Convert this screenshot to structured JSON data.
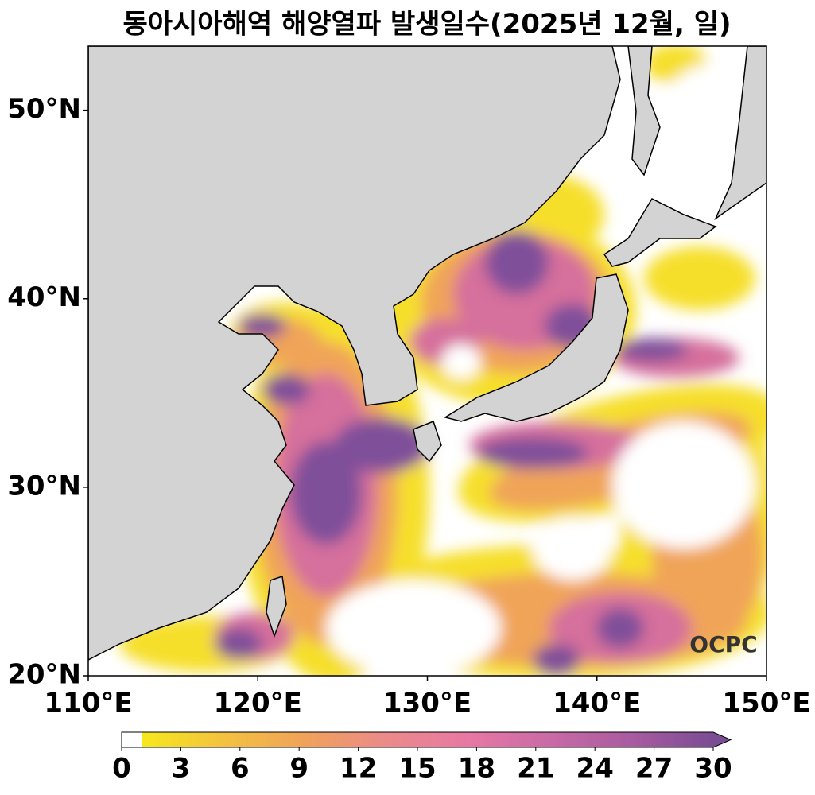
{
  "title": "동아시아해역 해양열파 발생일수(2025년 12월, 일)",
  "map": {
    "lonlim": [
      110,
      150
    ],
    "latlim": [
      20,
      53.4
    ],
    "lonticks": [
      {
        "value": 110,
        "label": "110°E"
      },
      {
        "value": 120,
        "label": "120°E"
      },
      {
        "value": 130,
        "label": "130°E"
      },
      {
        "value": 140,
        "label": "140°E"
      },
      {
        "value": 150,
        "label": "150°E"
      }
    ],
    "latticks": [
      {
        "value": 20,
        "label": "20°N"
      },
      {
        "value": 30,
        "label": "30°N"
      },
      {
        "value": 40,
        "label": "40°N"
      },
      {
        "value": 50,
        "label": "50°N"
      }
    ]
  },
  "colorbar": {
    "lim": [
      0,
      30
    ],
    "ticks": [
      0,
      3,
      6,
      9,
      12,
      15,
      18,
      21,
      24,
      27,
      30
    ],
    "colors": [
      "#ffffff",
      "#f6e81e",
      "#f3c23f",
      "#f0a25a",
      "#ec8a8a",
      "#e878a4",
      "#c96aa6",
      "#a85ba0",
      "#7b4c94"
    ]
  },
  "logo": "OCPC"
}
